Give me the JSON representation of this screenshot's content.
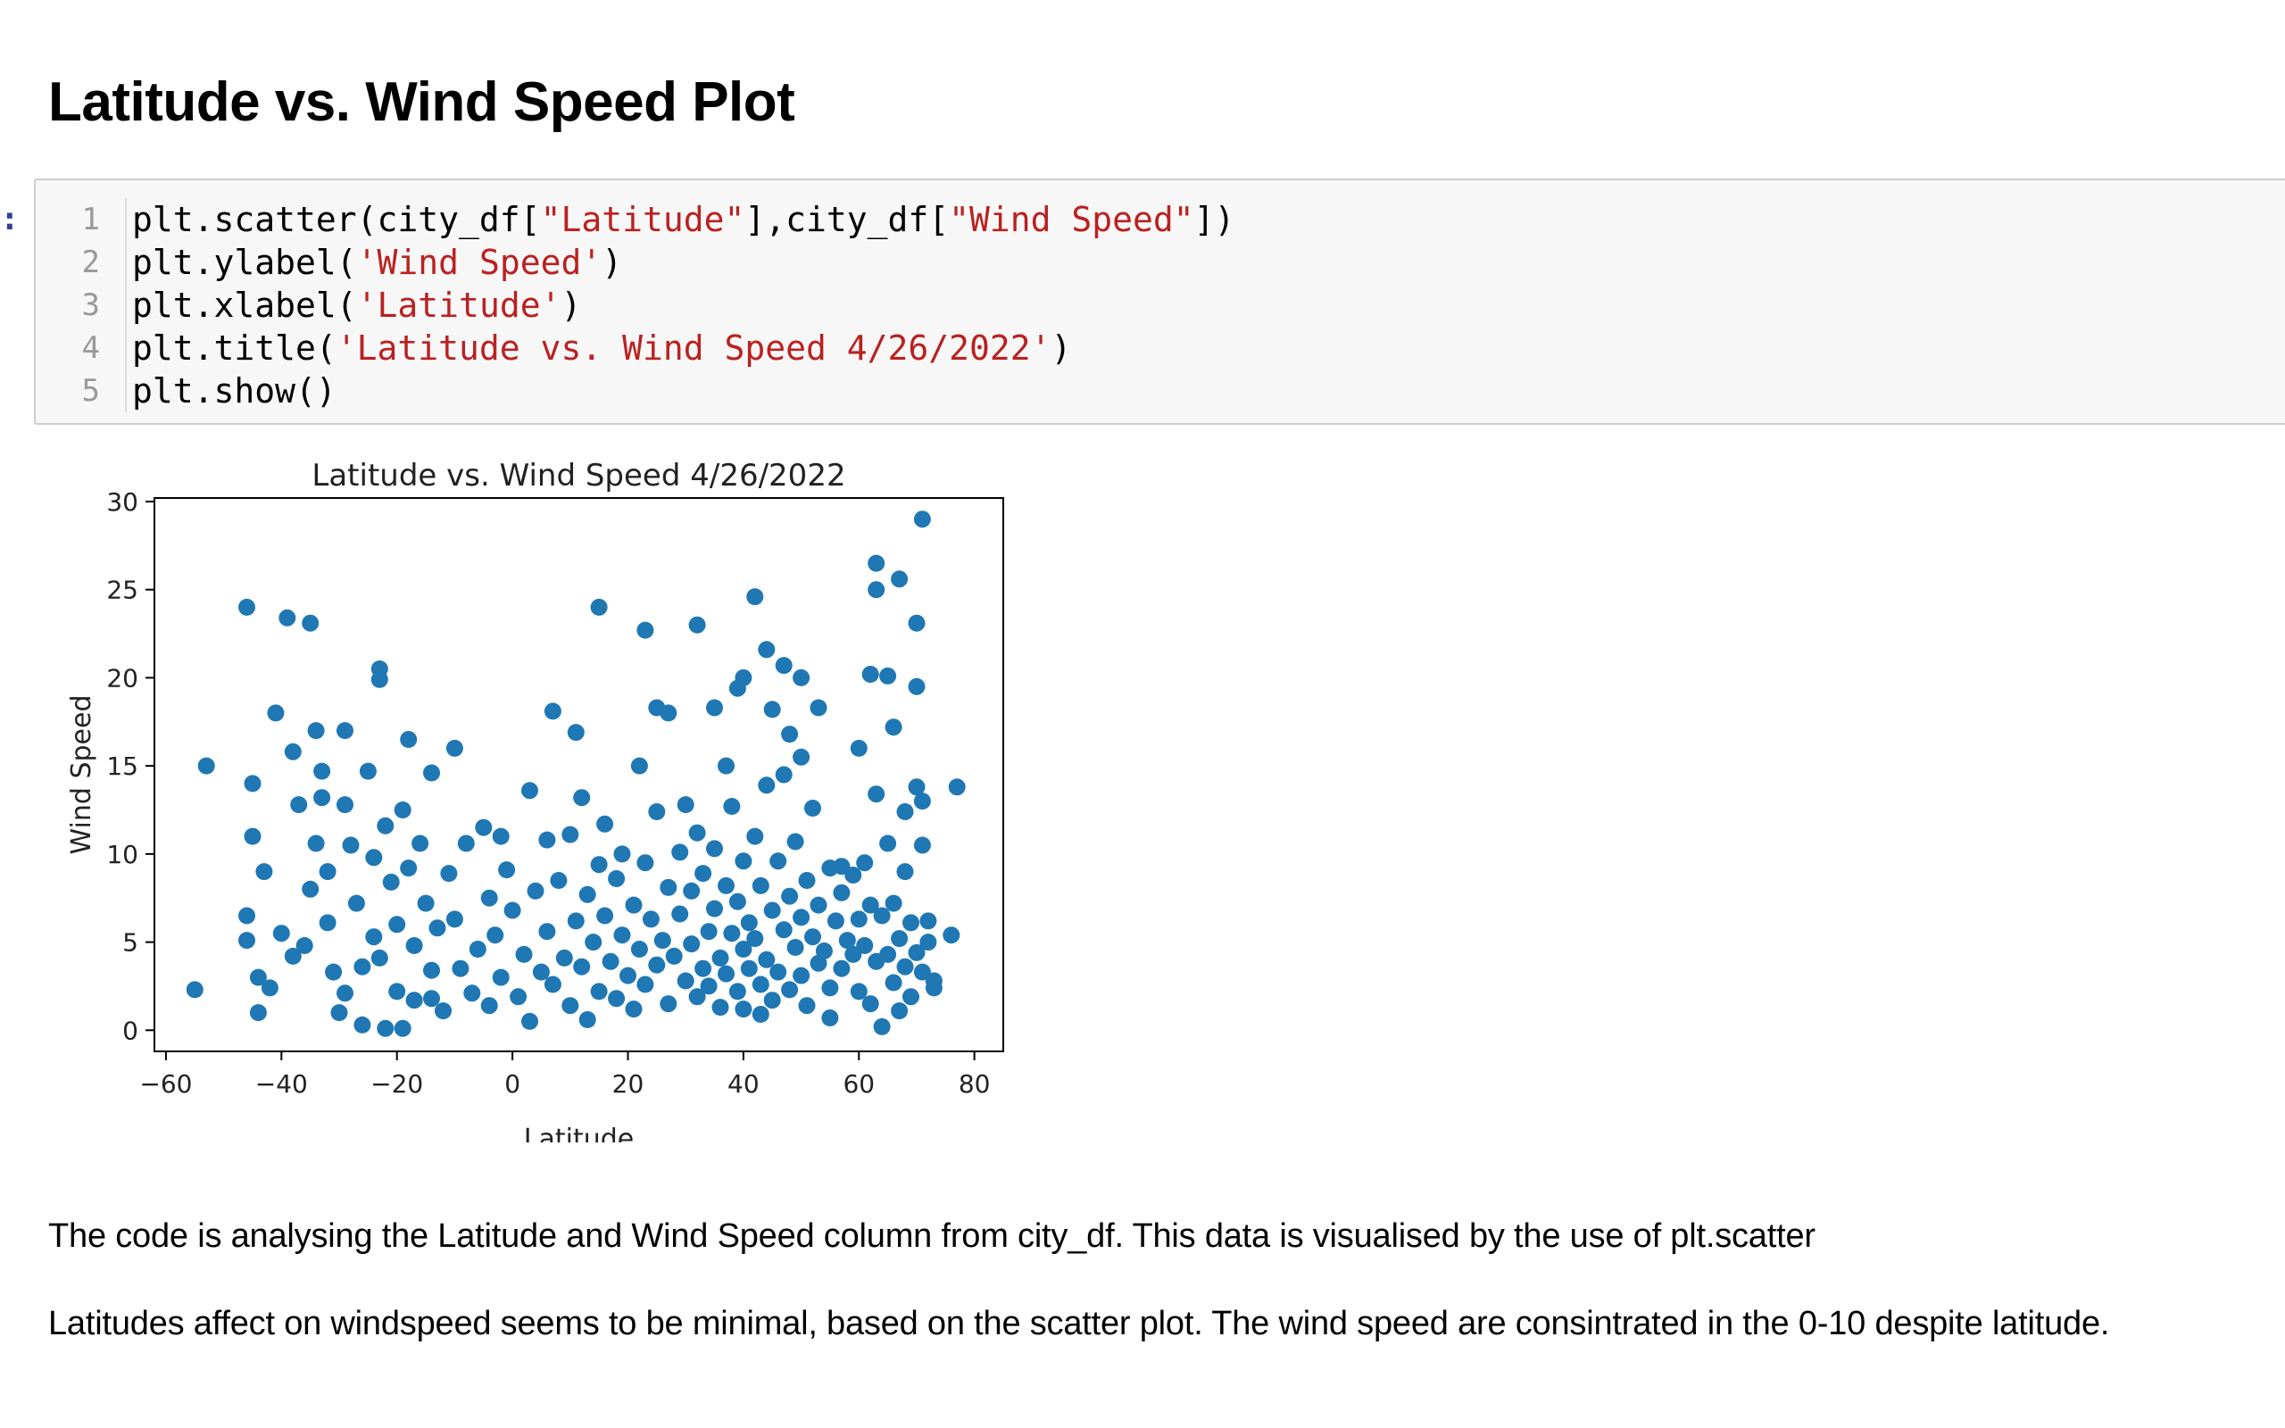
{
  "heading": "Latitude vs. Wind Speed Plot",
  "prompt_marker": ":",
  "code_lines": [
    {
      "no": "1",
      "parts": [
        [
          "plt.scatter(city_df[",
          ""
        ],
        [
          "\"Latitude\"",
          "str"
        ],
        [
          "],city_df[",
          ""
        ],
        [
          "\"Wind Speed\"",
          "str"
        ],
        [
          "])",
          ""
        ]
      ]
    },
    {
      "no": "2",
      "parts": [
        [
          "plt.ylabel(",
          ""
        ],
        [
          "'Wind Speed'",
          "str"
        ],
        [
          ")",
          ""
        ]
      ]
    },
    {
      "no": "3",
      "parts": [
        [
          "plt.xlabel(",
          ""
        ],
        [
          "'Latitude'",
          "str"
        ],
        [
          ")",
          ""
        ]
      ]
    },
    {
      "no": "4",
      "parts": [
        [
          "plt.title(",
          ""
        ],
        [
          "'Latitude vs. Wind Speed 4/26/2022'",
          "str"
        ],
        [
          ")",
          ""
        ]
      ]
    },
    {
      "no": "5",
      "parts": [
        [
          "plt.show()",
          ""
        ]
      ]
    }
  ],
  "paragraphs": [
    "The code is analysing the Latitude and Wind Speed column from city_df. This data is visualised by the use of plt.scatter",
    "Latitudes affect on windspeed seems to be minimal, based on the scatter plot. The wind speed are consintrated in the 0-10 despite latitude."
  ],
  "chart_data": {
    "type": "scatter",
    "title": "Latitude vs. Wind Speed 4/26/2022",
    "xlabel": "Latitude",
    "ylabel": "Wind Speed",
    "xlim": [
      -62,
      85
    ],
    "ylim": [
      -1.2,
      30.2
    ],
    "xticks": [
      -60,
      -40,
      -20,
      0,
      20,
      40,
      60,
      80
    ],
    "yticks": [
      0,
      5,
      10,
      15,
      20,
      25,
      30
    ],
    "grid": false,
    "color": "#1f77b4",
    "points": [
      [
        -55,
        2.3
      ],
      [
        -53,
        15
      ],
      [
        -46,
        24
      ],
      [
        -45,
        14
      ],
      [
        -45,
        11
      ],
      [
        -44,
        1
      ],
      [
        -43,
        9
      ],
      [
        -41,
        18
      ],
      [
        -39,
        23.4
      ],
      [
        -35,
        23.1
      ],
      [
        -34,
        17
      ],
      [
        -29,
        17
      ],
      [
        -23,
        20.5
      ],
      [
        -23,
        19.9
      ],
      [
        -18,
        16.5
      ],
      [
        -14,
        14.6
      ],
      [
        -10,
        16
      ],
      [
        -2,
        11
      ],
      [
        3,
        13.6
      ],
      [
        7,
        18.1
      ],
      [
        11,
        16.9
      ],
      [
        15,
        24
      ],
      [
        19,
        10
      ],
      [
        22,
        15
      ],
      [
        23,
        22.7
      ],
      [
        25,
        18.3
      ],
      [
        27,
        18
      ],
      [
        30,
        12.8
      ],
      [
        32,
        23
      ],
      [
        35,
        18.3
      ],
      [
        37,
        15
      ],
      [
        39,
        19.4
      ],
      [
        40,
        20
      ],
      [
        42,
        24.6
      ],
      [
        44,
        21.6
      ],
      [
        45,
        18.2
      ],
      [
        47,
        20.7
      ],
      [
        48,
        16.8
      ],
      [
        50,
        20
      ],
      [
        50,
        15.5
      ],
      [
        53,
        18.3
      ],
      [
        57,
        9.3
      ],
      [
        60,
        16
      ],
      [
        62,
        20.2
      ],
      [
        63,
        26.5
      ],
      [
        63,
        25
      ],
      [
        65,
        20.1
      ],
      [
        66,
        17.2
      ],
      [
        67,
        25.6
      ],
      [
        70,
        23.1
      ],
      [
        70,
        19.5
      ],
      [
        70,
        13.8
      ],
      [
        71,
        13
      ],
      [
        71,
        10.5
      ],
      [
        68,
        9
      ],
      [
        72,
        5
      ],
      [
        76,
        5.4
      ],
      [
        77,
        13.8
      ],
      [
        73,
        2.4
      ],
      [
        71,
        29
      ],
      [
        -46,
        6.5
      ],
      [
        -46,
        5.1
      ],
      [
        -44,
        3
      ],
      [
        -42,
        2.4
      ],
      [
        -40,
        5.5
      ],
      [
        -38,
        4.2
      ],
      [
        -38,
        15.8
      ],
      [
        -37,
        12.8
      ],
      [
        -36,
        4.8
      ],
      [
        -35,
        8
      ],
      [
        -34,
        10.6
      ],
      [
        -33,
        14.7
      ],
      [
        -33,
        13.2
      ],
      [
        -32,
        9
      ],
      [
        -32,
        6.1
      ],
      [
        -31,
        3.3
      ],
      [
        -30,
        1
      ],
      [
        -29,
        2.1
      ],
      [
        -29,
        12.8
      ],
      [
        -28,
        10.5
      ],
      [
        -27,
        7.2
      ],
      [
        -26,
        3.6
      ],
      [
        -25,
        14.7
      ],
      [
        -24,
        9.8
      ],
      [
        -24,
        5.3
      ],
      [
        -23,
        4.1
      ],
      [
        -22,
        11.6
      ],
      [
        -21,
        8.4
      ],
      [
        -20,
        6
      ],
      [
        -20,
        2.2
      ],
      [
        -19,
        12.5
      ],
      [
        -19,
        0.1
      ],
      [
        -18,
        9.2
      ],
      [
        -17,
        4.8
      ],
      [
        -17,
        1.7
      ],
      [
        -16,
        10.6
      ],
      [
        -15,
        7.2
      ],
      [
        -14,
        3.4
      ],
      [
        -13,
        5.8
      ],
      [
        -12,
        1.1
      ],
      [
        -11,
        8.9
      ],
      [
        -10,
        6.3
      ],
      [
        -9,
        3.5
      ],
      [
        -8,
        10.6
      ],
      [
        -7,
        2.1
      ],
      [
        -6,
        4.6
      ],
      [
        -5,
        11.5
      ],
      [
        -4,
        7.5
      ],
      [
        -4,
        1.4
      ],
      [
        -3,
        5.4
      ],
      [
        -2,
        3
      ],
      [
        -1,
        9.1
      ],
      [
        0,
        6.8
      ],
      [
        1,
        1.9
      ],
      [
        2,
        4.3
      ],
      [
        3,
        0.5
      ],
      [
        4,
        7.9
      ],
      [
        5,
        3.3
      ],
      [
        6,
        10.8
      ],
      [
        6,
        5.6
      ],
      [
        7,
        2.6
      ],
      [
        8,
        8.5
      ],
      [
        9,
        4.1
      ],
      [
        10,
        1.4
      ],
      [
        10,
        11.1
      ],
      [
        11,
        6.2
      ],
      [
        12,
        3.6
      ],
      [
        12,
        13.2
      ],
      [
        13,
        7.7
      ],
      [
        14,
        5
      ],
      [
        15,
        2.2
      ],
      [
        15,
        9.4
      ],
      [
        16,
        11.7
      ],
      [
        16,
        6.5
      ],
      [
        17,
        3.9
      ],
      [
        18,
        8.6
      ],
      [
        18,
        1.8
      ],
      [
        19,
        5.4
      ],
      [
        20,
        3.1
      ],
      [
        21,
        7.1
      ],
      [
        21,
        1.2
      ],
      [
        22,
        4.6
      ],
      [
        23,
        9.5
      ],
      [
        23,
        2.6
      ],
      [
        24,
        6.3
      ],
      [
        25,
        12.4
      ],
      [
        25,
        3.7
      ],
      [
        26,
        5.1
      ],
      [
        27,
        8.1
      ],
      [
        27,
        1.5
      ],
      [
        28,
        4.2
      ],
      [
        29,
        10.1
      ],
      [
        29,
        6.6
      ],
      [
        30,
        2.8
      ],
      [
        31,
        7.9
      ],
      [
        31,
        4.9
      ],
      [
        32,
        1.9
      ],
      [
        32,
        11.2
      ],
      [
        33,
        3.5
      ],
      [
        33,
        8.9
      ],
      [
        34,
        5.6
      ],
      [
        34,
        2.5
      ],
      [
        35,
        10.3
      ],
      [
        35,
        6.9
      ],
      [
        36,
        4.1
      ],
      [
        36,
        1.3
      ],
      [
        37,
        8.2
      ],
      [
        37,
        3.2
      ],
      [
        38,
        5.5
      ],
      [
        38,
        12.7
      ],
      [
        39,
        2.2
      ],
      [
        39,
        7.3
      ],
      [
        40,
        4.6
      ],
      [
        40,
        9.6
      ],
      [
        40,
        1.2
      ],
      [
        41,
        6.1
      ],
      [
        41,
        3.5
      ],
      [
        42,
        11
      ],
      [
        42,
        5.2
      ],
      [
        43,
        2.6
      ],
      [
        43,
        8.2
      ],
      [
        44,
        4
      ],
      [
        44,
        13.9
      ],
      [
        45,
        6.8
      ],
      [
        45,
        1.7
      ],
      [
        46,
        9.6
      ],
      [
        46,
        3.3
      ],
      [
        47,
        5.7
      ],
      [
        47,
        14.5
      ],
      [
        48,
        7.6
      ],
      [
        48,
        2.3
      ],
      [
        49,
        4.7
      ],
      [
        49,
        10.7
      ],
      [
        50,
        6.4
      ],
      [
        50,
        3.1
      ],
      [
        51,
        8.5
      ],
      [
        51,
        1.4
      ],
      [
        52,
        5.3
      ],
      [
        52,
        12.6
      ],
      [
        53,
        3.8
      ],
      [
        53,
        7.1
      ],
      [
        54,
        4.5
      ],
      [
        55,
        9.2
      ],
      [
        55,
        2.4
      ],
      [
        56,
        6.2
      ],
      [
        57,
        3.5
      ],
      [
        57,
        7.8
      ],
      [
        58,
        5.1
      ],
      [
        59,
        4.3
      ],
      [
        59,
        8.8
      ],
      [
        60,
        6.3
      ],
      [
        60,
        2.2
      ],
      [
        61,
        9.5
      ],
      [
        61,
        4.8
      ],
      [
        62,
        7.1
      ],
      [
        62,
        1.5
      ],
      [
        63,
        3.9
      ],
      [
        63,
        13.4
      ],
      [
        64,
        6.5
      ],
      [
        64,
        0.2
      ],
      [
        65,
        4.3
      ],
      [
        65,
        10.6
      ],
      [
        66,
        2.7
      ],
      [
        66,
        7.2
      ],
      [
        67,
        5.2
      ],
      [
        67,
        1.1
      ],
      [
        68,
        3.6
      ],
      [
        68,
        12.4
      ],
      [
        69,
        6.1
      ],
      [
        69,
        1.9
      ],
      [
        70,
        4.4
      ],
      [
        71,
        3.3
      ],
      [
        72,
        6.2
      ],
      [
        73,
        2.8
      ],
      [
        -22,
        0.1
      ],
      [
        -26,
        0.3
      ],
      [
        13,
        0.6
      ],
      [
        43,
        0.9
      ],
      [
        -14,
        1.8
      ],
      [
        55,
        0.7
      ]
    ]
  }
}
